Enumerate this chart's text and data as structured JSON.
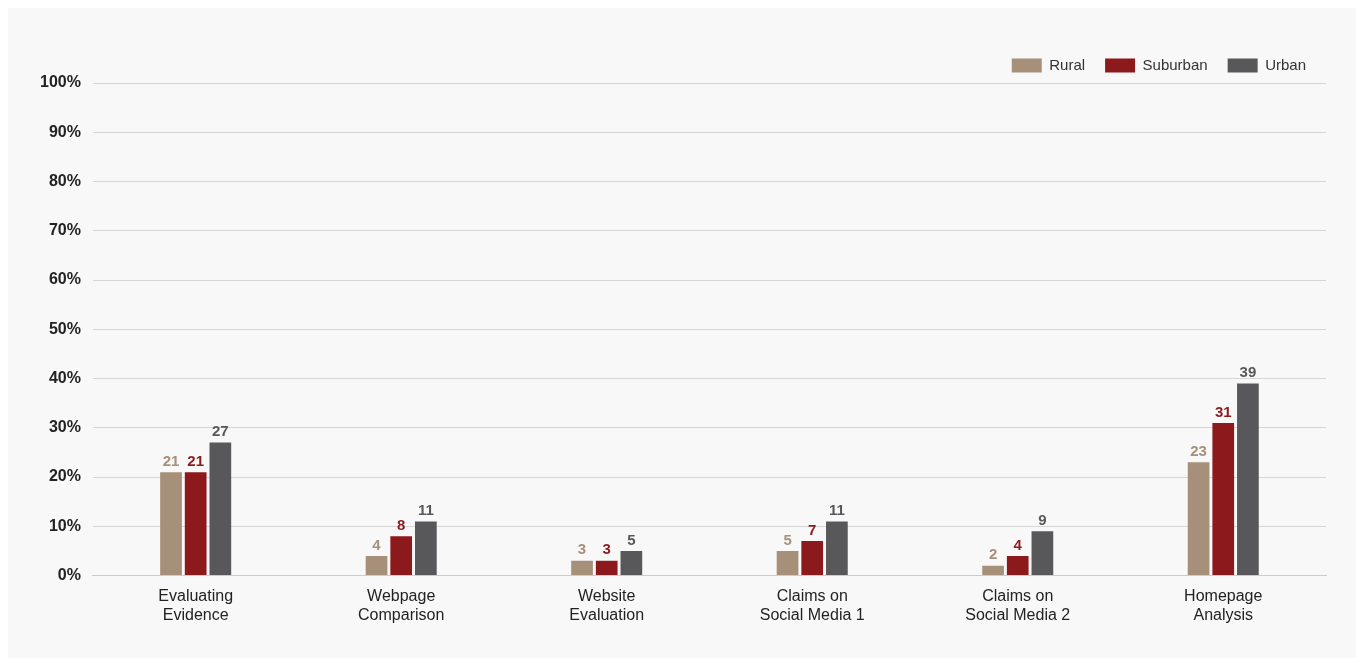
{
  "chart_data": {
    "type": "bar",
    "categories": [
      "Evaluating\nEvidence",
      "Webpage\nComparison",
      "Website\nEvaluation",
      "Claims on\nSocial Media 1",
      "Claims on\nSocial Media 2",
      "Homepage\nAnalysis"
    ],
    "series": [
      {
        "name": "Rural",
        "color": "#a69079",
        "values": [
          21,
          4,
          3,
          5,
          2,
          23
        ]
      },
      {
        "name": "Suburban",
        "color": "#8c1a1d",
        "values": [
          21,
          8,
          3,
          7,
          4,
          31
        ]
      },
      {
        "name": "Urban",
        "color": "#58585a",
        "values": [
          27,
          11,
          5,
          11,
          9,
          39
        ]
      }
    ],
    "ylim": [
      0,
      100
    ],
    "yticks": [
      {
        "value": 0,
        "label": "0%"
      },
      {
        "value": 10,
        "label": "10%"
      },
      {
        "value": 20,
        "label": "20%"
      },
      {
        "value": 30,
        "label": "30%"
      },
      {
        "value": 40,
        "label": "40%"
      },
      {
        "value": 50,
        "label": "50%"
      },
      {
        "value": 60,
        "label": "60%"
      },
      {
        "value": 70,
        "label": "70%"
      },
      {
        "value": 80,
        "label": "80%"
      },
      {
        "value": 90,
        "label": "90%"
      },
      {
        "value": 100,
        "label": "100%"
      }
    ],
    "grid": "y",
    "legend": "top right",
    "data_labels": true
  }
}
